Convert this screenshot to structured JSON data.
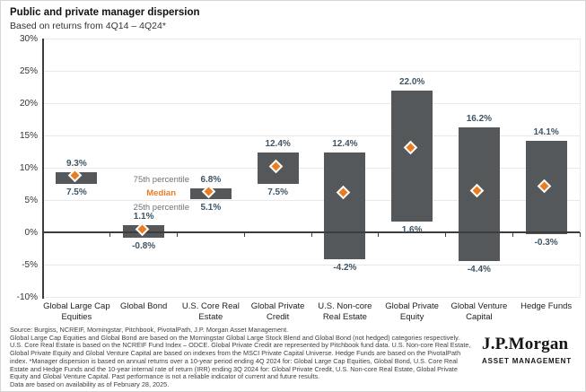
{
  "page": {
    "title": "Public and private manager dispersion",
    "subtitle": "Based on returns from 4Q14 – 4Q24*"
  },
  "chart_data": {
    "type": "bar",
    "subtype": "floating-range-bars-with-median-markers",
    "title": "Public and private manager dispersion",
    "subtitle": "Based on returns from 4Q14 – 4Q24*",
    "ylabel": "",
    "xlabel": "",
    "ylim": [
      -10,
      30
    ],
    "grid": true,
    "yticks": [
      30,
      25,
      20,
      15,
      10,
      5,
      0,
      -5,
      -10
    ],
    "ytick_labels": [
      "30%",
      "25%",
      "20%",
      "15%",
      "10%",
      "5%",
      "0%",
      "-5%",
      "-10%"
    ],
    "categories": [
      "Global Large Cap Equities",
      "Global Bond",
      "U.S. Core Real Estate",
      "Global Private Credit",
      "U.S. Non-core Real Estate",
      "Global Private Equity",
      "Global Venture Capital",
      "Hedge Funds"
    ],
    "series": [
      {
        "name": "75th percentile",
        "values": [
          9.3,
          1.1,
          6.8,
          12.4,
          12.4,
          22.0,
          16.2,
          14.1
        ]
      },
      {
        "name": "Median (estimated from markers)",
        "values": [
          8.5,
          0.2,
          6.0,
          10.0,
          5.9,
          12.9,
          6.2,
          6.9
        ]
      },
      {
        "name": "25th percentile",
        "values": [
          7.5,
          -0.8,
          5.1,
          7.5,
          -4.2,
          1.6,
          -4.4,
          -0.3
        ]
      }
    ],
    "value_labels_top": [
      "9.3%",
      "1.1%",
      "6.8%",
      "12.4%",
      "12.4%",
      "22.0%",
      "16.2%",
      "14.1%"
    ],
    "value_labels_bottom": [
      "7.5%",
      "-0.8%",
      "5.1%",
      "7.5%",
      "-4.2%",
      "1.6%",
      "-4.4%",
      "-0.3%"
    ],
    "legend": {
      "p75": "75th percentile",
      "median": "Median",
      "p25": "25th percentile",
      "legend_position": "annotated-left-of-third-bar"
    },
    "colors": {
      "bar": "#54585a",
      "median_diamond": "#e87e23",
      "value_label": "#3f5565",
      "legend_gray": "#6f7275",
      "axis": "#3c3c3c",
      "gridline": "#e9e9e9"
    }
  },
  "footer": {
    "source_lines": [
      "Source: Burgiss, NCREIF, Morningstar, Pitchbook, PivotalPath, J.P. Morgan Asset Management.",
      "Global Large Cap Equities and Global Bond are based on the Morningstar Global Large Stock Blend and Global Bond (not hedged) categories respectively.",
      "U.S. Core Real Estate is based on the NCREIF Fund Index – ODCE. Global Private Credit are represented by Pitchbook fund data. U.S. Non-core Real Estate,",
      "Global Private Equity and Global Venture Capital are based on indexes from the MSCI Private Capital Universe. Hedge Funds are based on the PivotalPath",
      "index. *Manager dispersion is based on annual returns over a 10-year period ending 4Q 2024 for: Global Large Cap Equities, Global Bond, U.S. Core Real",
      "Estate and Hedge Funds and the 10-year internal rate of return (IRR) ending 3Q 2024 for: Global Private Credit, U.S. Non-core Real Estate, Global Private",
      "Equity and Global Venture Capital. Past performance is not a reliable indicator of current and future results.",
      "Data are based on availability as of February 28, 2025."
    ],
    "logo": {
      "brand": "J.P.Morgan",
      "division": "ASSET MANAGEMENT"
    }
  }
}
